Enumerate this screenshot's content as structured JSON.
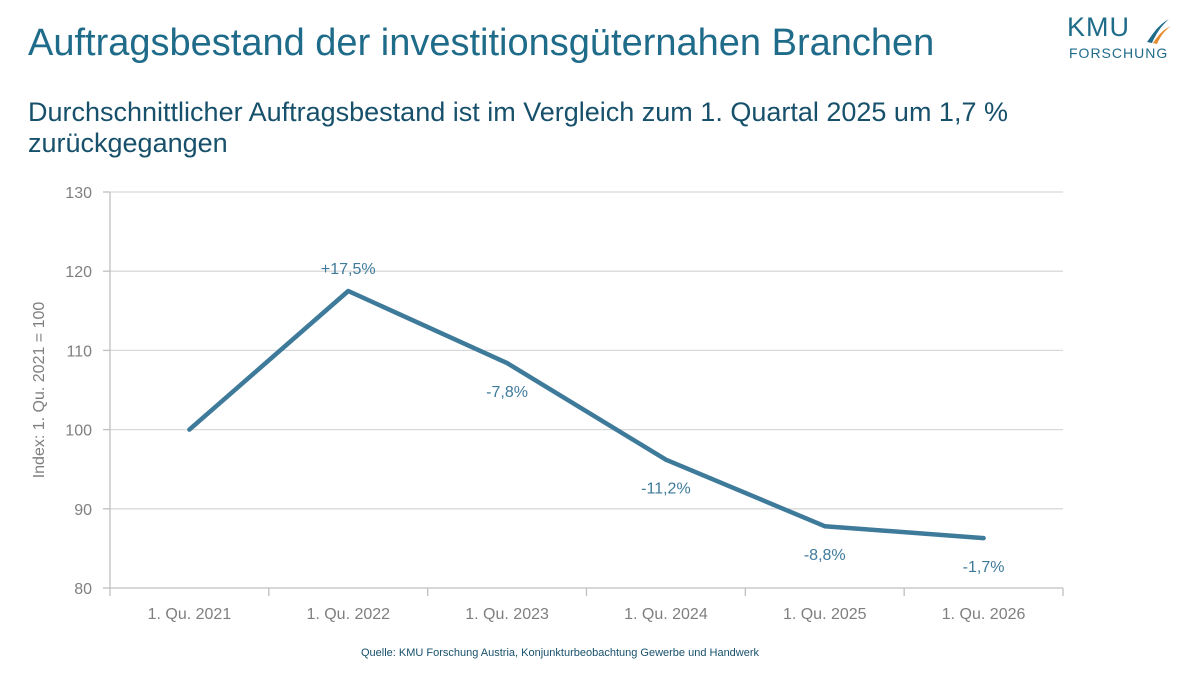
{
  "slide": {
    "title": "Auftragsbestand der investitionsgüternahen Branchen",
    "subtitle": "Durchschnittlicher Auftragsbestand ist im Vergleich zum 1. Quartal 2025 um 1,7 % zurückgegangen",
    "source": "Quelle: KMU Forschung Austria, Konjunkturbeobachtung Gewerbe und Handwerk"
  },
  "logo": {
    "name": "KMU",
    "subname": "FORSCHUNG",
    "accent_colors": [
      "#1f6b8a",
      "#e58a2e"
    ]
  },
  "colors": {
    "line": "#3e7a9a",
    "label": "#3e7a9a",
    "axis_text": "#7f7f7f",
    "grid": "#d9d9d9",
    "axis": "#bfbfbf"
  },
  "chart_data": {
    "type": "line",
    "categories": [
      "1. Qu. 2021",
      "1. Qu. 2022",
      "1. Qu. 2023",
      "1. Qu. 2024",
      "1. Qu. 2025",
      "1. Qu. 2026"
    ],
    "values": [
      100,
      117.5,
      108.4,
      96.2,
      87.8,
      86.3
    ],
    "data_labels": [
      "",
      "+17,5%",
      "-7,8%",
      "-11,2%",
      "-8,8%",
      "-1,7%"
    ],
    "ylabel": "Index: 1. Qu. 2021 = 100",
    "xlabel": "",
    "ylim": [
      80,
      130
    ],
    "yticks": [
      80,
      90,
      100,
      110,
      120,
      130
    ],
    "grid": true,
    "legend": false
  }
}
